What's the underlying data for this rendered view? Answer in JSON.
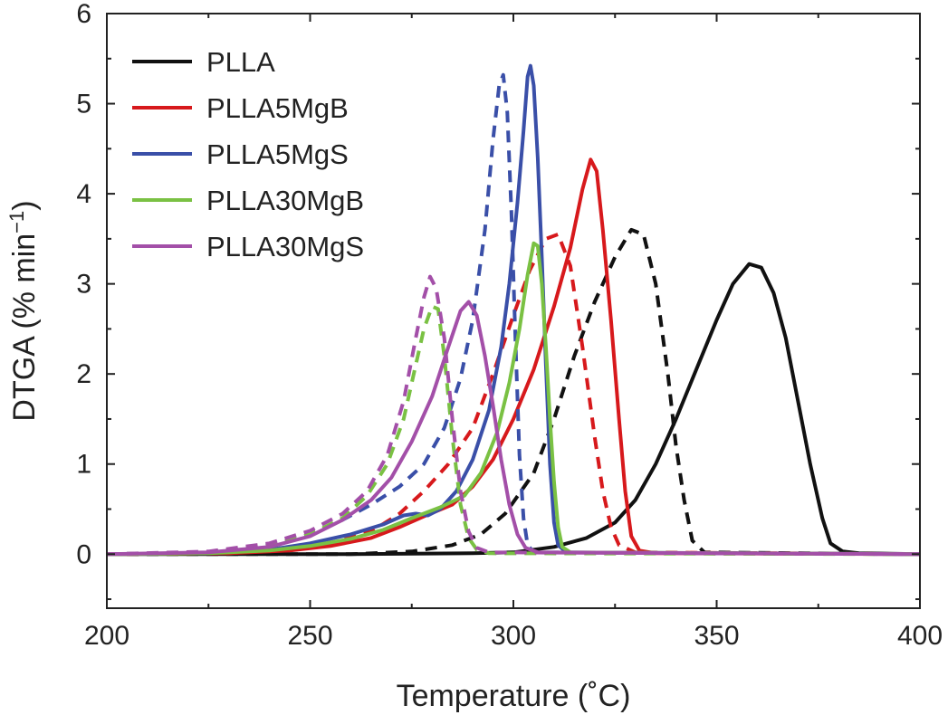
{
  "chart_data": {
    "type": "line",
    "title": "",
    "xlabel": "Temperature (˚C)",
    "ylabel_main": "DTGA (% min",
    "ylabel_sup": "−1",
    "ylabel_end": ")",
    "xlim": [
      200,
      400
    ],
    "ylim": [
      -0.6,
      6
    ],
    "xticks": [
      200,
      250,
      300,
      350,
      400
    ],
    "yticks": [
      0,
      1,
      2,
      3,
      4,
      5,
      6
    ],
    "grid": false,
    "legend_position": "top-left",
    "legend_note": "solid and dashed lines share colors",
    "series": [
      {
        "name": "PLLA",
        "color": "#111111",
        "dash": "solid",
        "points": [
          [
            200,
            0
          ],
          [
            260,
            0
          ],
          [
            290,
            0.01
          ],
          [
            300,
            0.02
          ],
          [
            310,
            0.08
          ],
          [
            318,
            0.18
          ],
          [
            325,
            0.35
          ],
          [
            330,
            0.6
          ],
          [
            335,
            1.0
          ],
          [
            340,
            1.5
          ],
          [
            345,
            2.05
          ],
          [
            350,
            2.6
          ],
          [
            354,
            3.0
          ],
          [
            358,
            3.22
          ],
          [
            361,
            3.18
          ],
          [
            364,
            2.9
          ],
          [
            367,
            2.4
          ],
          [
            370,
            1.7
          ],
          [
            373,
            1.0
          ],
          [
            376,
            0.4
          ],
          [
            378,
            0.12
          ],
          [
            381,
            0.03
          ],
          [
            385,
            0.01
          ],
          [
            400,
            0
          ]
        ]
      },
      {
        "name": "",
        "color": "#111111",
        "dash": "dashed",
        "points": [
          [
            200,
            0
          ],
          [
            260,
            0
          ],
          [
            275,
            0.03
          ],
          [
            285,
            0.1
          ],
          [
            292,
            0.22
          ],
          [
            298,
            0.45
          ],
          [
            305,
            0.9
          ],
          [
            310,
            1.5
          ],
          [
            315,
            2.2
          ],
          [
            320,
            2.8
          ],
          [
            325,
            3.3
          ],
          [
            329,
            3.6
          ],
          [
            332,
            3.55
          ],
          [
            335,
            3.0
          ],
          [
            338,
            2.0
          ],
          [
            340,
            1.2
          ],
          [
            342,
            0.6
          ],
          [
            344,
            0.15
          ],
          [
            347,
            0.02
          ],
          [
            400,
            0
          ]
        ]
      },
      {
        "name": "PLLA5MgB",
        "color": "#d7191c",
        "dash": "solid",
        "points": [
          [
            200,
            0
          ],
          [
            230,
            0.01
          ],
          [
            245,
            0.04
          ],
          [
            255,
            0.09
          ],
          [
            265,
            0.18
          ],
          [
            272,
            0.3
          ],
          [
            278,
            0.42
          ],
          [
            285,
            0.55
          ],
          [
            290,
            0.75
          ],
          [
            295,
            1.05
          ],
          [
            300,
            1.5
          ],
          [
            305,
            2.05
          ],
          [
            310,
            2.75
          ],
          [
            314,
            3.4
          ],
          [
            317,
            4.05
          ],
          [
            319,
            4.38
          ],
          [
            320.5,
            4.25
          ],
          [
            322,
            3.6
          ],
          [
            324,
            2.6
          ],
          [
            326,
            1.5
          ],
          [
            327.5,
            0.7
          ],
          [
            329,
            0.2
          ],
          [
            331,
            0.04
          ],
          [
            335,
            0.01
          ],
          [
            400,
            0
          ]
        ]
      },
      {
        "name": "",
        "color": "#d7191c",
        "dash": "dashed",
        "points": [
          [
            200,
            0
          ],
          [
            230,
            0.01
          ],
          [
            245,
            0.05
          ],
          [
            255,
            0.12
          ],
          [
            265,
            0.25
          ],
          [
            272,
            0.45
          ],
          [
            278,
            0.7
          ],
          [
            284,
            1.0
          ],
          [
            290,
            1.4
          ],
          [
            295,
            2.0
          ],
          [
            300,
            2.65
          ],
          [
            304,
            3.15
          ],
          [
            308,
            3.5
          ],
          [
            311,
            3.55
          ],
          [
            314,
            3.2
          ],
          [
            317,
            2.3
          ],
          [
            320,
            1.3
          ],
          [
            322,
            0.7
          ],
          [
            324,
            0.3
          ],
          [
            326,
            0.1
          ],
          [
            330,
            0.02
          ],
          [
            400,
            0
          ]
        ]
      },
      {
        "name": "PLLA5MgS",
        "color": "#3a4fa8",
        "dash": "solid",
        "points": [
          [
            200,
            0
          ],
          [
            225,
            0.01
          ],
          [
            240,
            0.05
          ],
          [
            250,
            0.12
          ],
          [
            260,
            0.22
          ],
          [
            268,
            0.33
          ],
          [
            273,
            0.43
          ],
          [
            276,
            0.45
          ],
          [
            279,
            0.43
          ],
          [
            282,
            0.5
          ],
          [
            286,
            0.7
          ],
          [
            290,
            1.05
          ],
          [
            294,
            1.6
          ],
          [
            297,
            2.3
          ],
          [
            299,
            3.0
          ],
          [
            301,
            3.9
          ],
          [
            302.5,
            4.7
          ],
          [
            303.5,
            5.3
          ],
          [
            304.2,
            5.42
          ],
          [
            305,
            5.2
          ],
          [
            306,
            4.4
          ],
          [
            307,
            3.3
          ],
          [
            308,
            2.1
          ],
          [
            309,
            1.0
          ],
          [
            310,
            0.35
          ],
          [
            311,
            0.1
          ],
          [
            313,
            0.02
          ],
          [
            400,
            0
          ]
        ]
      },
      {
        "name": "",
        "color": "#3a4fa8",
        "dash": "dashed",
        "points": [
          [
            200,
            0
          ],
          [
            225,
            0.02
          ],
          [
            240,
            0.1
          ],
          [
            250,
            0.22
          ],
          [
            258,
            0.38
          ],
          [
            265,
            0.55
          ],
          [
            272,
            0.75
          ],
          [
            278,
            1.0
          ],
          [
            283,
            1.4
          ],
          [
            287,
            1.95
          ],
          [
            290,
            2.6
          ],
          [
            293,
            3.6
          ],
          [
            295,
            4.6
          ],
          [
            296.5,
            5.2
          ],
          [
            297.5,
            5.32
          ],
          [
            298.5,
            4.9
          ],
          [
            299.5,
            3.8
          ],
          [
            300.5,
            2.4
          ],
          [
            301.5,
            1.1
          ],
          [
            302.5,
            0.4
          ],
          [
            303.5,
            0.1
          ],
          [
            305,
            0.02
          ],
          [
            400,
            0
          ]
        ]
      },
      {
        "name": "PLLA30MgB",
        "color": "#7ac143",
        "dash": "solid",
        "points": [
          [
            200,
            0
          ],
          [
            225,
            0.01
          ],
          [
            240,
            0.04
          ],
          [
            250,
            0.09
          ],
          [
            260,
            0.17
          ],
          [
            268,
            0.27
          ],
          [
            275,
            0.4
          ],
          [
            282,
            0.52
          ],
          [
            288,
            0.65
          ],
          [
            292,
            0.9
          ],
          [
            296,
            1.35
          ],
          [
            299,
            1.9
          ],
          [
            301.5,
            2.5
          ],
          [
            303.5,
            3.1
          ],
          [
            305,
            3.45
          ],
          [
            306,
            3.42
          ],
          [
            307,
            3.0
          ],
          [
            308,
            2.3
          ],
          [
            309,
            1.5
          ],
          [
            310,
            0.8
          ],
          [
            311,
            0.3
          ],
          [
            312,
            0.08
          ],
          [
            314,
            0.02
          ],
          [
            400,
            0
          ]
        ]
      },
      {
        "name": "",
        "color": "#7ac143",
        "dash": "dashed",
        "points": [
          [
            200,
            0
          ],
          [
            225,
            0.02
          ],
          [
            240,
            0.1
          ],
          [
            250,
            0.22
          ],
          [
            258,
            0.4
          ],
          [
            264,
            0.65
          ],
          [
            269,
            1.0
          ],
          [
            273,
            1.5
          ],
          [
            276,
            2.1
          ],
          [
            278,
            2.5
          ],
          [
            280,
            2.75
          ],
          [
            281.5,
            2.72
          ],
          [
            283,
            2.2
          ],
          [
            285,
            1.3
          ],
          [
            287,
            0.55
          ],
          [
            289,
            0.18
          ],
          [
            291,
            0.05
          ],
          [
            294,
            0.01
          ],
          [
            400,
            0
          ]
        ]
      },
      {
        "name": "PLLA30MgS",
        "color": "#a34fa8",
        "dash": "solid",
        "points": [
          [
            200,
            0
          ],
          [
            225,
            0.02
          ],
          [
            240,
            0.08
          ],
          [
            250,
            0.2
          ],
          [
            258,
            0.38
          ],
          [
            265,
            0.6
          ],
          [
            270,
            0.85
          ],
          [
            275,
            1.25
          ],
          [
            280,
            1.75
          ],
          [
            284,
            2.3
          ],
          [
            287,
            2.7
          ],
          [
            289,
            2.8
          ],
          [
            291,
            2.65
          ],
          [
            293,
            2.2
          ],
          [
            295,
            1.65
          ],
          [
            297,
            1.05
          ],
          [
            299,
            0.55
          ],
          [
            301,
            0.22
          ],
          [
            303,
            0.07
          ],
          [
            306,
            0.02
          ],
          [
            400,
            0
          ]
        ]
      },
      {
        "name": "",
        "color": "#a34fa8",
        "dash": "dashed",
        "points": [
          [
            200,
            0
          ],
          [
            225,
            0.03
          ],
          [
            240,
            0.12
          ],
          [
            250,
            0.26
          ],
          [
            258,
            0.45
          ],
          [
            264,
            0.7
          ],
          [
            269,
            1.1
          ],
          [
            273,
            1.7
          ],
          [
            276,
            2.4
          ],
          [
            278,
            2.85
          ],
          [
            279.5,
            3.08
          ],
          [
            281,
            2.95
          ],
          [
            283,
            2.4
          ],
          [
            285,
            1.5
          ],
          [
            287,
            0.7
          ],
          [
            289,
            0.25
          ],
          [
            291,
            0.07
          ],
          [
            294,
            0.02
          ],
          [
            400,
            0
          ]
        ]
      }
    ]
  }
}
